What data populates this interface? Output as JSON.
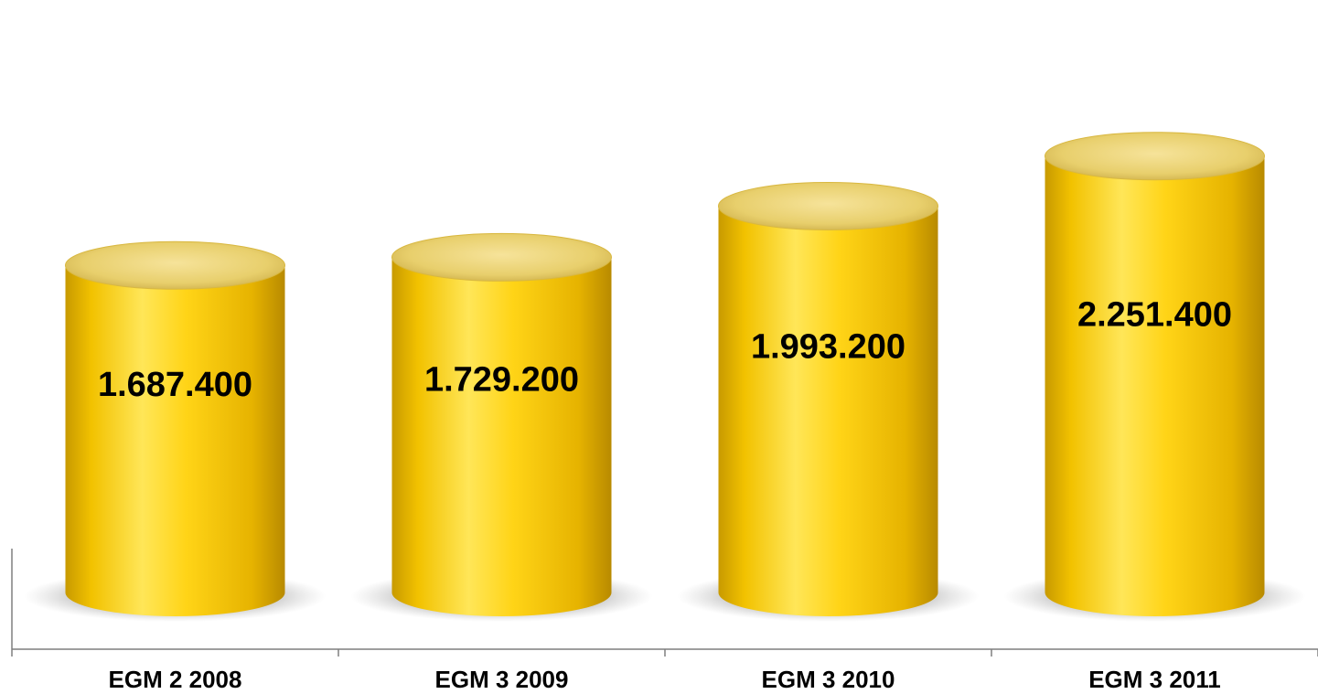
{
  "chart_data": {
    "type": "bar",
    "style": "3d-cylinder",
    "categories": [
      "EGM 2 2008",
      "EGM 3 2009",
      "EGM 3 2010",
      "EGM 3 2011"
    ],
    "values": [
      1687400,
      1729200,
      1993200,
      2251400
    ],
    "value_labels": [
      "1.687.400",
      "1.729.200",
      "1.993.200",
      "2.251.400"
    ],
    "title": "",
    "xlabel": "",
    "ylabel": "",
    "ylim": [
      0,
      2350000
    ],
    "grid": false,
    "legend": "none",
    "colors": {
      "bar_light": "#ffe24a",
      "bar_mid": "#f5c400",
      "bar_dark": "#b88a00",
      "top_face": "#ecd57a",
      "axis": "#7f7f7f",
      "shadow": "#666666"
    }
  }
}
